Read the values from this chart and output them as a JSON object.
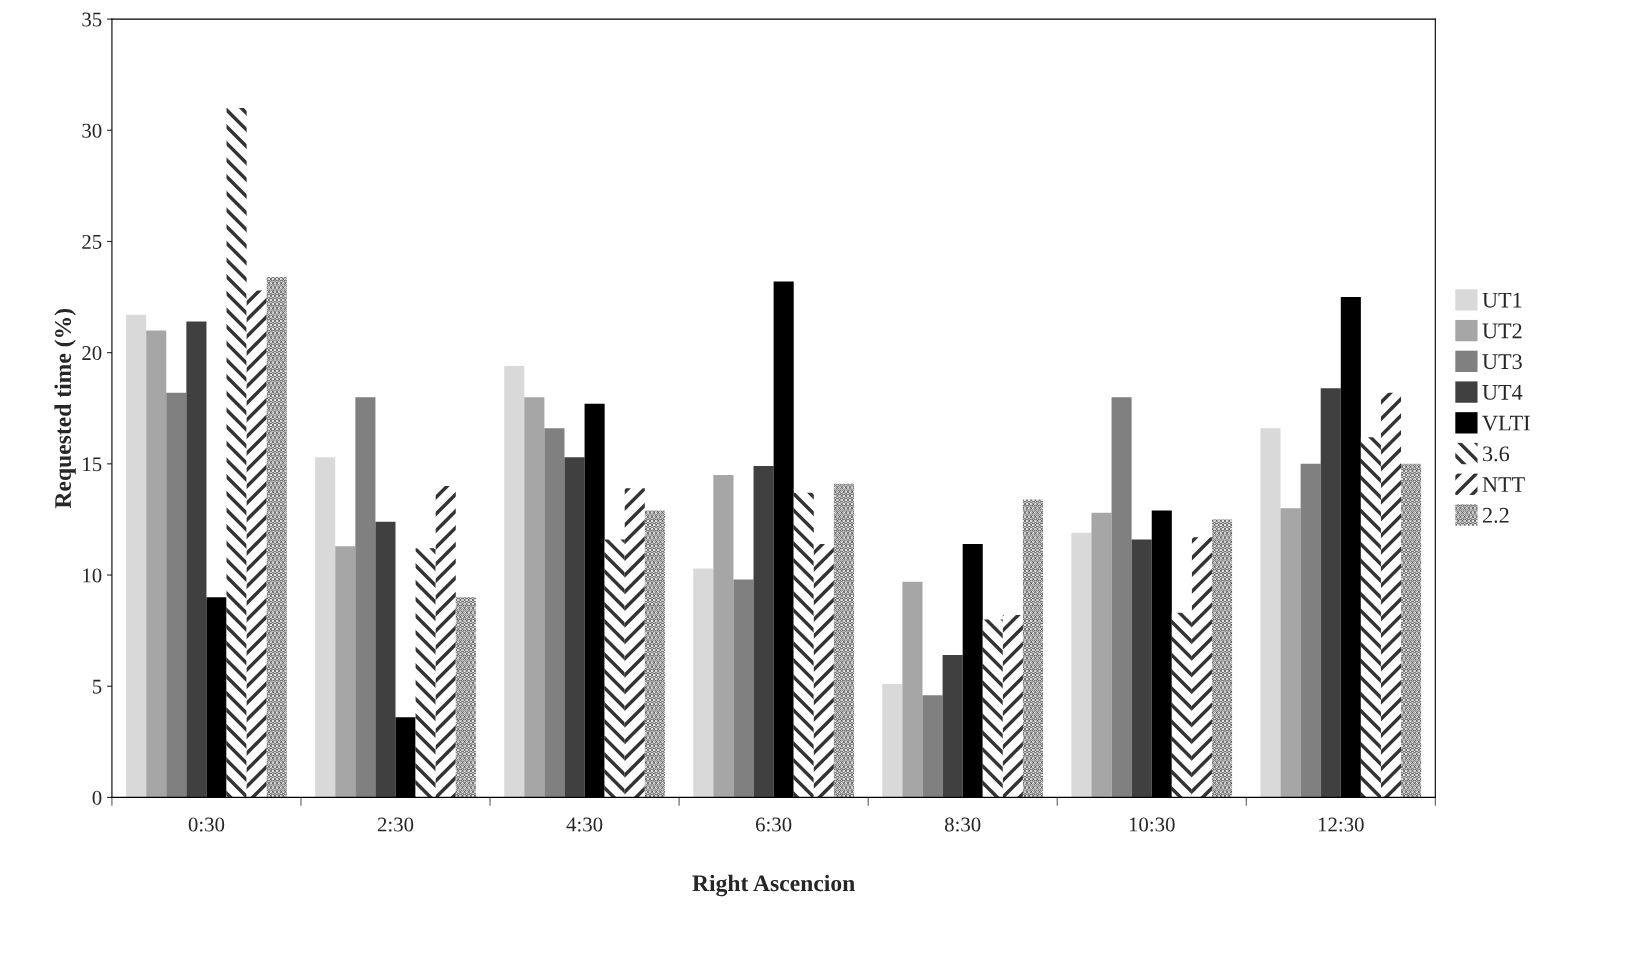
{
  "chart_data": {
    "type": "bar",
    "xlabel": "Right Ascencion",
    "ylabel": "Requested time (%)",
    "categories": [
      "0:30",
      "2:30",
      "4:30",
      "6:30",
      "8:30",
      "10:30",
      "12:30"
    ],
    "series": [
      {
        "name": "UT1",
        "color": "#d9d9d9",
        "values": [
          21.7,
          15.3,
          19.4,
          10.3,
          5.1,
          11.9,
          16.6
        ]
      },
      {
        "name": "UT2",
        "color": "#a6a6a6",
        "values": [
          21.0,
          11.3,
          18.0,
          14.5,
          9.7,
          12.8,
          13.0
        ]
      },
      {
        "name": "UT3",
        "color": "#808080",
        "values": [
          18.2,
          18.0,
          16.6,
          9.8,
          4.6,
          18.0,
          15.0
        ]
      },
      {
        "name": "UT4",
        "color": "#404040",
        "values": [
          21.4,
          12.4,
          15.3,
          14.9,
          6.4,
          11.6,
          18.4
        ]
      },
      {
        "name": "VLTI",
        "color": "#000000",
        "values": [
          9.0,
          3.6,
          17.7,
          23.2,
          11.4,
          12.9,
          22.5
        ]
      },
      {
        "name": "3.6",
        "color": "#333333",
        "values": [
          31.0,
          11.2,
          11.6,
          13.7,
          8.0,
          8.3,
          16.2
        ]
      },
      {
        "name": "NTT",
        "color": "#333333",
        "values": [
          22.8,
          14.0,
          13.9,
          11.4,
          8.2,
          11.7,
          18.2
        ]
      },
      {
        "name": "2.2",
        "color": "#555555",
        "values": [
          23.4,
          9.0,
          12.9,
          14.1,
          13.4,
          12.5,
          15.0
        ]
      }
    ],
    "ylim": [
      0,
      35
    ],
    "yticks": [
      0,
      5,
      10,
      15,
      20,
      25,
      30,
      35
    ],
    "grid": false,
    "legend": "right"
  }
}
